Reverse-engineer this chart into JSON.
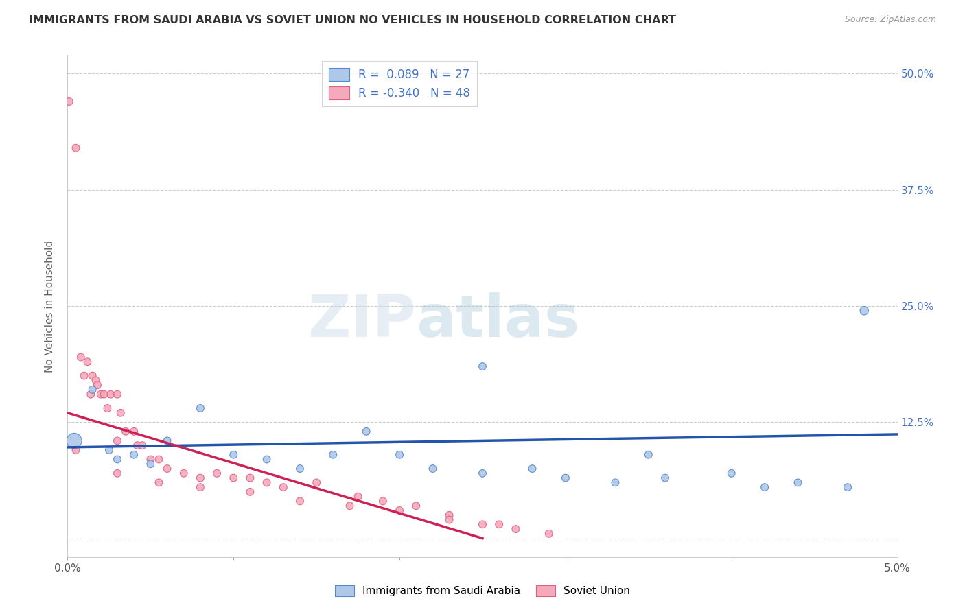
{
  "title": "IMMIGRANTS FROM SAUDI ARABIA VS SOVIET UNION NO VEHICLES IN HOUSEHOLD CORRELATION CHART",
  "source": "Source: ZipAtlas.com",
  "ylabel": "No Vehicles in Household",
  "xlim": [
    0.0,
    0.05
  ],
  "ylim": [
    -0.02,
    0.52
  ],
  "xticks": [
    0.0,
    0.01,
    0.02,
    0.03,
    0.04,
    0.05
  ],
  "xticklabels": [
    "0.0%",
    "",
    "",
    "",
    "",
    "5.0%"
  ],
  "yticks": [
    0.0,
    0.125,
    0.25,
    0.375,
    0.5
  ],
  "yticklabels_right": [
    "",
    "12.5%",
    "25.0%",
    "37.5%",
    "50.0%"
  ],
  "legend1_r": "0.089",
  "legend1_n": "27",
  "legend2_r": "-0.340",
  "legend2_n": "48",
  "saudi_color": "#adc8e8",
  "soviet_color": "#f5aabc",
  "saudi_edge": "#5588cc",
  "soviet_edge": "#e06080",
  "trendline_saudi_color": "#2255aa",
  "trendline_soviet_color": "#cc2255",
  "watermark_zip": "ZIP",
  "watermark_atlas": "atlas",
  "background_color": "#ffffff",
  "grid_color": "#cccccc",
  "saudi_x": [
    0.0004,
    0.0015,
    0.0025,
    0.003,
    0.004,
    0.005,
    0.006,
    0.008,
    0.01,
    0.012,
    0.014,
    0.016,
    0.018,
    0.02,
    0.022,
    0.025,
    0.028,
    0.03,
    0.033,
    0.036,
    0.04,
    0.042,
    0.044,
    0.047,
    0.025,
    0.035,
    0.048
  ],
  "saudi_y": [
    0.105,
    0.16,
    0.095,
    0.085,
    0.09,
    0.08,
    0.105,
    0.14,
    0.09,
    0.085,
    0.075,
    0.09,
    0.115,
    0.09,
    0.075,
    0.07,
    0.075,
    0.065,
    0.06,
    0.065,
    0.07,
    0.055,
    0.06,
    0.055,
    0.185,
    0.09,
    0.245
  ],
  "saudi_sizes": [
    250,
    60,
    60,
    60,
    60,
    60,
    60,
    60,
    60,
    60,
    60,
    60,
    60,
    60,
    60,
    60,
    60,
    60,
    60,
    60,
    60,
    60,
    60,
    60,
    60,
    60,
    80
  ],
  "soviet_x": [
    0.0001,
    0.0005,
    0.0008,
    0.001,
    0.0012,
    0.0014,
    0.0015,
    0.0017,
    0.0018,
    0.002,
    0.0022,
    0.0024,
    0.0026,
    0.003,
    0.003,
    0.0032,
    0.0035,
    0.004,
    0.0042,
    0.0045,
    0.005,
    0.0055,
    0.006,
    0.007,
    0.008,
    0.009,
    0.01,
    0.011,
    0.012,
    0.013,
    0.015,
    0.0175,
    0.019,
    0.021,
    0.023,
    0.025,
    0.027,
    0.029,
    0.0005,
    0.003,
    0.0055,
    0.008,
    0.011,
    0.014,
    0.017,
    0.02,
    0.023,
    0.026
  ],
  "soviet_y": [
    0.47,
    0.42,
    0.195,
    0.175,
    0.19,
    0.155,
    0.175,
    0.17,
    0.165,
    0.155,
    0.155,
    0.14,
    0.155,
    0.155,
    0.105,
    0.135,
    0.115,
    0.115,
    0.1,
    0.1,
    0.085,
    0.085,
    0.075,
    0.07,
    0.065,
    0.07,
    0.065,
    0.065,
    0.06,
    0.055,
    0.06,
    0.045,
    0.04,
    0.035,
    0.025,
    0.015,
    0.01,
    0.005,
    0.095,
    0.07,
    0.06,
    0.055,
    0.05,
    0.04,
    0.035,
    0.03,
    0.02,
    0.015
  ],
  "soviet_sizes": [
    60,
    60,
    60,
    60,
    60,
    60,
    60,
    60,
    60,
    60,
    60,
    60,
    60,
    60,
    60,
    60,
    60,
    60,
    60,
    60,
    60,
    60,
    60,
    60,
    60,
    60,
    60,
    60,
    60,
    60,
    60,
    60,
    60,
    60,
    60,
    60,
    60,
    60,
    60,
    60,
    60,
    60,
    60,
    60,
    60,
    60,
    60,
    60
  ],
  "saudi_trendline_x": [
    0.0,
    0.05
  ],
  "saudi_trendline_y": [
    0.098,
    0.112
  ],
  "soviet_trendline_x": [
    0.0,
    0.025
  ],
  "soviet_trendline_y": [
    0.135,
    0.0
  ]
}
